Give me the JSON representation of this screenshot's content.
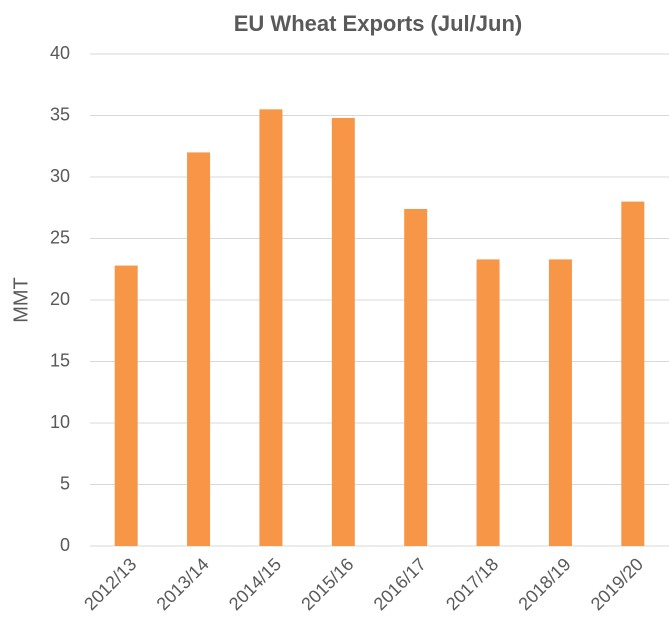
{
  "chart_data": {
    "type": "bar",
    "title": "EU Wheat Exports (Jul/Jun)",
    "y_label": "MMT",
    "categories": [
      "2012/13",
      "2013/14",
      "2014/15",
      "2015/16",
      "2016/17",
      "2017/18",
      "2018/19",
      "2019/20"
    ],
    "values": [
      22.8,
      32.0,
      35.5,
      34.8,
      27.4,
      23.3,
      23.3,
      28.0
    ],
    "color": "#f79646",
    "ylim": [
      0,
      40
    ],
    "yticks": [
      0,
      5,
      10,
      15,
      20,
      25,
      30,
      35,
      40
    ],
    "grid": true
  }
}
